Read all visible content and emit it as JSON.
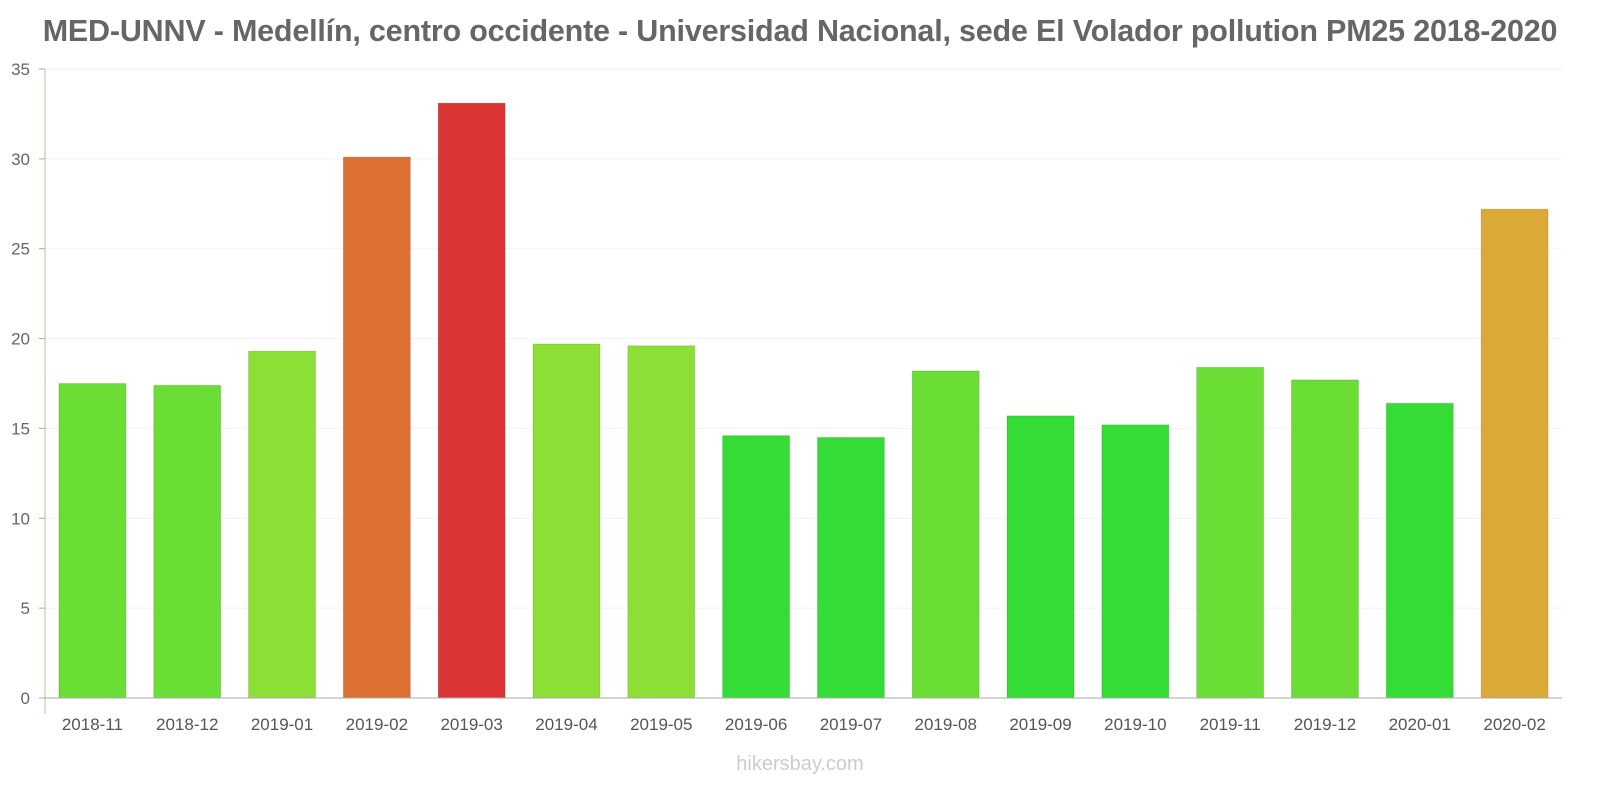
{
  "chart_data": {
    "type": "bar",
    "title": "MED-UNNV - Medellín,  centro occidente - Universidad Nacional, sede El Volador pollution PM25 2018-2020",
    "xlabel": "",
    "ylabel": "",
    "ylim": [
      0,
      35
    ],
    "yticks": [
      0,
      5,
      10,
      15,
      20,
      25,
      30,
      35
    ],
    "grid": true,
    "categories": [
      "2018-11",
      "2018-12",
      "2019-01",
      "2019-02",
      "2019-03",
      "2019-04",
      "2019-05",
      "2019-06",
      "2019-07",
      "2019-08",
      "2019-09",
      "2019-10",
      "2019-11",
      "2019-12",
      "2020-01",
      "2020-02"
    ],
    "values": [
      17.5,
      17.4,
      19.3,
      30.1,
      33.1,
      19.7,
      19.6,
      14.6,
      14.5,
      18.2,
      15.7,
      15.2,
      18.4,
      17.7,
      16.4,
      27.2
    ],
    "colors": [
      "#6ade35",
      "#6ade35",
      "#8ddf35",
      "#dd7033",
      "#db3535",
      "#8ddf35",
      "#8ddf35",
      "#35dc35",
      "#35dc35",
      "#6ade35",
      "#35dc35",
      "#35dc35",
      "#6ade35",
      "#6ade35",
      "#35dc35",
      "#dba935"
    ]
  },
  "watermark": "hikersbay.com"
}
